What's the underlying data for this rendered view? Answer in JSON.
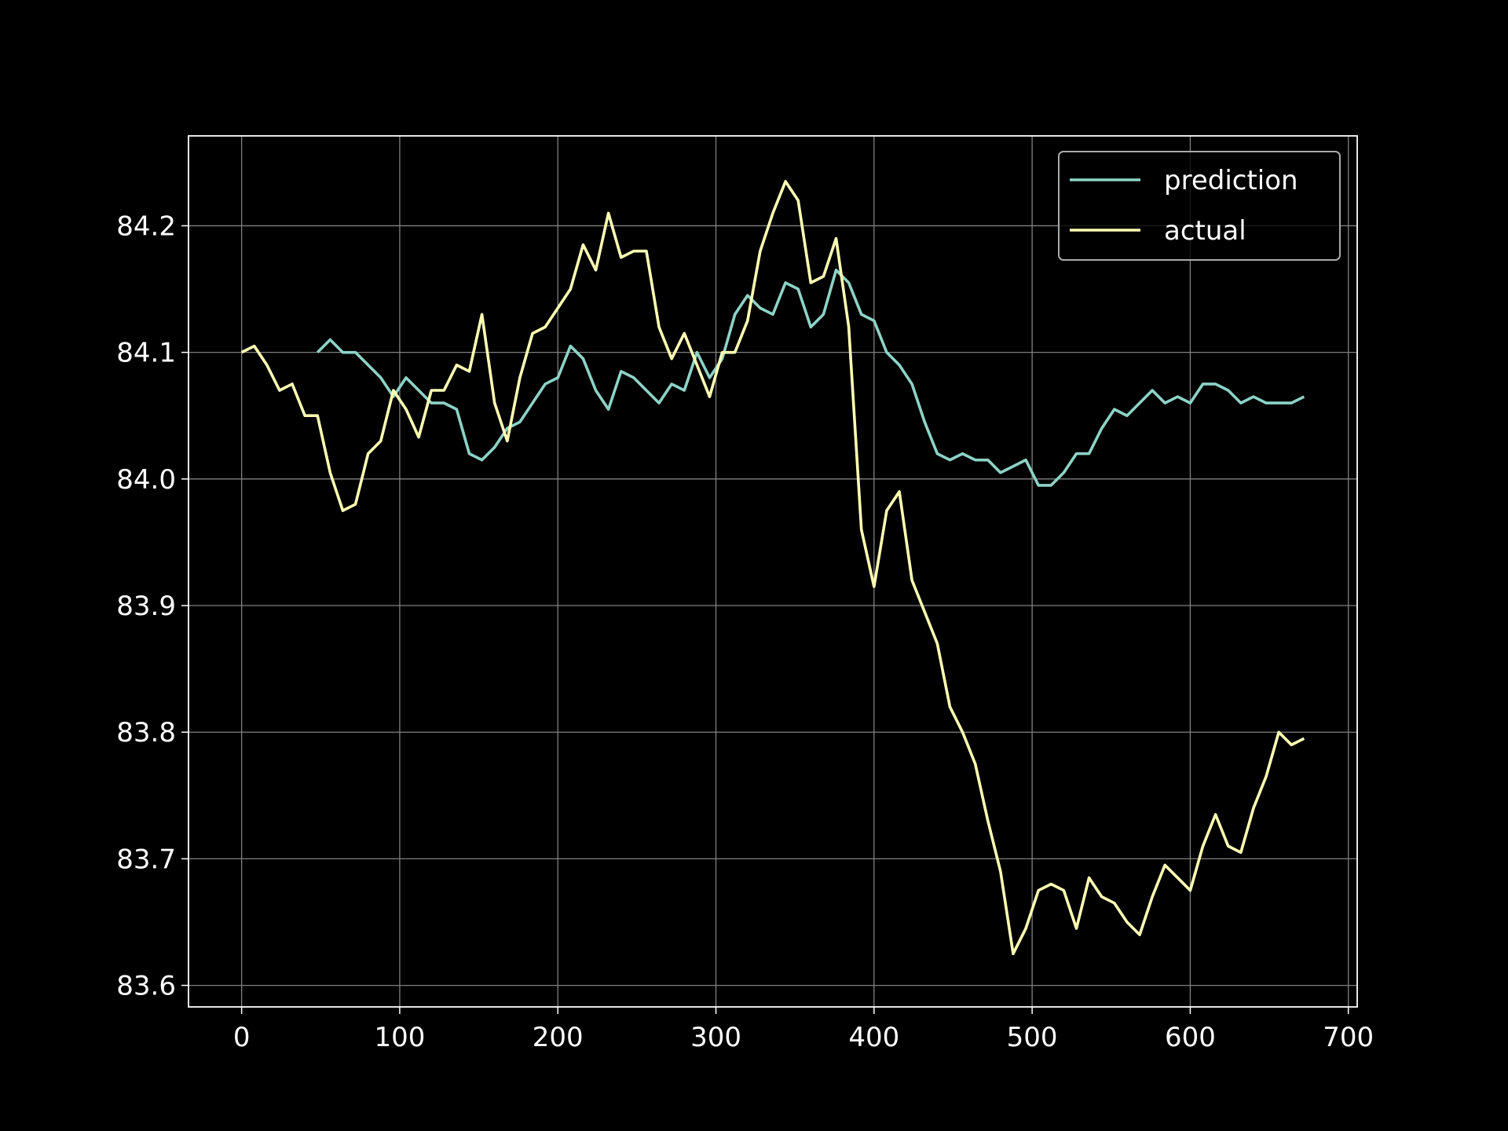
{
  "chart_data": {
    "type": "line",
    "x": [
      0,
      8,
      16,
      24,
      32,
      40,
      48,
      56,
      64,
      72,
      80,
      88,
      96,
      104,
      112,
      120,
      128,
      136,
      144,
      152,
      160,
      168,
      176,
      184,
      192,
      200,
      208,
      216,
      224,
      232,
      240,
      248,
      256,
      264,
      272,
      280,
      288,
      296,
      304,
      312,
      320,
      328,
      336,
      344,
      352,
      360,
      368,
      376,
      384,
      392,
      400,
      408,
      416,
      424,
      432,
      440,
      448,
      456,
      464,
      472,
      480,
      488,
      496,
      504,
      512,
      520,
      528,
      536,
      544,
      552,
      560,
      568,
      576,
      584,
      592,
      600,
      608,
      616,
      624,
      632,
      640,
      648,
      656,
      664,
      672
    ],
    "series": [
      {
        "name": "prediction",
        "color": "#8dd3c7",
        "values": [
          null,
          null,
          null,
          null,
          null,
          null,
          84.1,
          84.11,
          84.1,
          84.1,
          84.09,
          84.08,
          84.065,
          84.08,
          84.07,
          84.06,
          84.06,
          84.055,
          84.02,
          84.015,
          84.025,
          84.04,
          84.045,
          84.06,
          84.075,
          84.08,
          84.105,
          84.095,
          84.07,
          84.055,
          84.085,
          84.08,
          84.07,
          84.06,
          84.075,
          84.07,
          84.1,
          84.08,
          84.095,
          84.13,
          84.145,
          84.135,
          84.13,
          84.155,
          84.15,
          84.12,
          84.13,
          84.165,
          84.155,
          84.13,
          84.125,
          84.1,
          84.09,
          84.075,
          84.045,
          84.02,
          84.015,
          84.02,
          84.015,
          84.015,
          84.005,
          84.01,
          84.015,
          83.995,
          83.995,
          84.005,
          84.02,
          84.02,
          84.04,
          84.055,
          84.05,
          84.06,
          84.07,
          84.06,
          84.065,
          84.06,
          84.075,
          84.075,
          84.07,
          84.06,
          84.065,
          84.06,
          84.06,
          84.06,
          84.065
        ]
      },
      {
        "name": "actual",
        "color": "#feffb3",
        "values": [
          84.1,
          84.105,
          84.09,
          84.07,
          84.075,
          84.05,
          84.05,
          84.005,
          83.975,
          83.98,
          84.02,
          84.03,
          84.07,
          84.055,
          84.033,
          84.07,
          84.07,
          84.09,
          84.085,
          84.13,
          84.06,
          84.03,
          84.08,
          84.115,
          84.12,
          84.135,
          84.15,
          84.185,
          84.165,
          84.21,
          84.175,
          84.18,
          84.18,
          84.12,
          84.095,
          84.115,
          84.09,
          84.065,
          84.1,
          84.1,
          84.125,
          84.18,
          84.21,
          84.235,
          84.22,
          84.155,
          84.16,
          84.19,
          84.12,
          83.96,
          83.915,
          83.975,
          83.99,
          83.92,
          83.895,
          83.87,
          83.82,
          83.8,
          83.775,
          83.73,
          83.69,
          83.625,
          83.645,
          83.675,
          83.68,
          83.675,
          83.645,
          83.685,
          83.67,
          83.665,
          83.65,
          83.64,
          83.67,
          83.695,
          83.685,
          83.675,
          83.71,
          83.735,
          83.71,
          83.705,
          83.74,
          83.765,
          83.8,
          83.79,
          83.795
        ]
      }
    ],
    "xlim": [
      -33.6,
      705.6
    ],
    "ylim": [
      83.583,
      84.271
    ],
    "xticks": [
      0,
      100,
      200,
      300,
      400,
      500,
      600,
      700
    ],
    "yticks": [
      83.6,
      83.7,
      83.8,
      83.9,
      {
        "value": 84,
        "label": "84.0"
      },
      84.1,
      84.2
    ],
    "grid": true,
    "legend": "upper right"
  }
}
